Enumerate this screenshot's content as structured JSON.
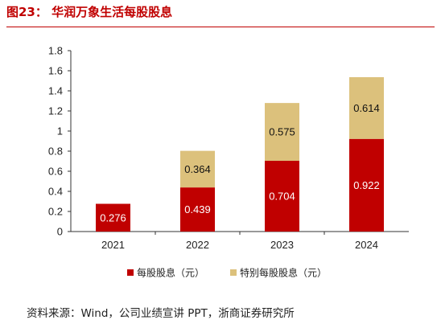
{
  "figure": {
    "title": "图23：   华润万象生活每股股息",
    "source": "资料来源：Wind，公司业绩宣讲 PPT，浙商证券研究所"
  },
  "colors": {
    "title_red": "#c00000",
    "dividend": "#c00000",
    "special_dividend": "#dcc17c",
    "axis": "#333333"
  },
  "chart_data": {
    "type": "bar",
    "stacked": true,
    "categories": [
      "2021",
      "2022",
      "2023",
      "2024"
    ],
    "series": [
      {
        "name": "每股股息（元）",
        "values": [
          0.276,
          0.439,
          0.704,
          0.922
        ],
        "labels": [
          "0.276",
          "0.439",
          "0.704",
          "0.922"
        ]
      },
      {
        "name": "特别每股股息（元）",
        "values": [
          0,
          0.364,
          0.575,
          0.614
        ],
        "labels": [
          "",
          "0.364",
          "0.575",
          "0.614"
        ]
      }
    ],
    "yticks": [
      "0",
      "0.2",
      "0.4",
      "0.6",
      "0.8",
      "1",
      "1.2",
      "1.4",
      "1.6",
      "1.8"
    ],
    "ylim": [
      0,
      1.8
    ],
    "grid": false,
    "legend_position": "bottom"
  }
}
